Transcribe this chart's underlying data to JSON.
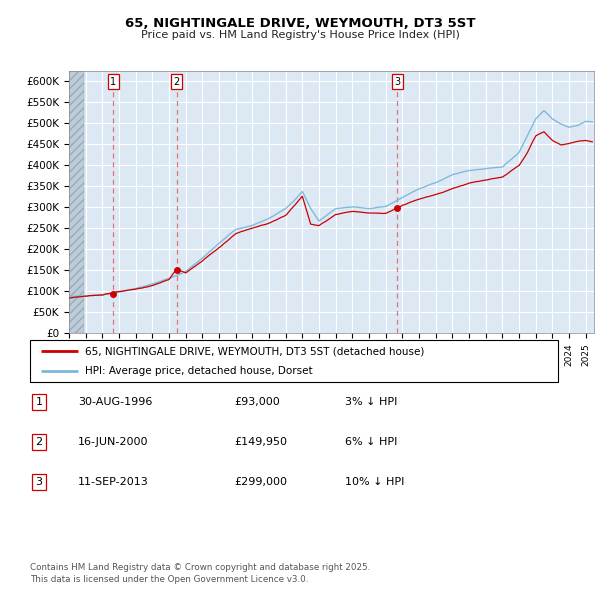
{
  "title": "65, NIGHTINGALE DRIVE, WEYMOUTH, DT3 5ST",
  "subtitle": "Price paid vs. HM Land Registry's House Price Index (HPI)",
  "ylim": [
    0,
    625000
  ],
  "yticks": [
    0,
    50000,
    100000,
    150000,
    200000,
    250000,
    300000,
    350000,
    400000,
    450000,
    500000,
    550000,
    600000
  ],
  "ytick_labels": [
    "£0",
    "£50K",
    "£100K",
    "£150K",
    "£200K",
    "£250K",
    "£300K",
    "£350K",
    "£400K",
    "£450K",
    "£500K",
    "£550K",
    "£600K"
  ],
  "xlim_start": 1994.0,
  "xlim_end": 2025.5,
  "hpi_color": "#7ab8d9",
  "price_color": "#cc0000",
  "marker_color": "#cc0000",
  "dashed_line_color": "#e06060",
  "sale_dates": [
    1996.663,
    2000.456,
    2013.703
  ],
  "sale_prices": [
    93000,
    149950,
    299000
  ],
  "sale_labels": [
    "1",
    "2",
    "3"
  ],
  "legend_price_label": "65, NIGHTINGALE DRIVE, WEYMOUTH, DT3 5ST (detached house)",
  "legend_hpi_label": "HPI: Average price, detached house, Dorset",
  "table_entries": [
    {
      "num": "1",
      "date": "30-AUG-1996",
      "price": "£93,000",
      "change": "3% ↓ HPI"
    },
    {
      "num": "2",
      "date": "16-JUN-2000",
      "price": "£149,950",
      "change": "6% ↓ HPI"
    },
    {
      "num": "3",
      "date": "11-SEP-2013",
      "price": "£299,000",
      "change": "10% ↓ HPI"
    }
  ],
  "footnote": "Contains HM Land Registry data © Crown copyright and database right 2025.\nThis data is licensed under the Open Government Licence v3.0.",
  "bg_color": "#dce9f5",
  "grid_color": "#ffffff",
  "hpi_key_points": [
    [
      1994.0,
      87000
    ],
    [
      1995.0,
      90000
    ],
    [
      1996.0,
      93000
    ],
    [
      1997.0,
      100000
    ],
    [
      1998.0,
      108000
    ],
    [
      1999.0,
      118000
    ],
    [
      2000.0,
      132000
    ],
    [
      2001.0,
      148000
    ],
    [
      2002.0,
      180000
    ],
    [
      2003.0,
      215000
    ],
    [
      2004.0,
      248000
    ],
    [
      2005.0,
      258000
    ],
    [
      2006.0,
      276000
    ],
    [
      2007.0,
      300000
    ],
    [
      2007.5,
      318000
    ],
    [
      2008.0,
      340000
    ],
    [
      2008.5,
      300000
    ],
    [
      2009.0,
      270000
    ],
    [
      2009.5,
      285000
    ],
    [
      2010.0,
      300000
    ],
    [
      2011.0,
      305000
    ],
    [
      2012.0,
      300000
    ],
    [
      2013.0,
      305000
    ],
    [
      2014.0,
      325000
    ],
    [
      2015.0,
      345000
    ],
    [
      2016.0,
      360000
    ],
    [
      2017.0,
      378000
    ],
    [
      2018.0,
      388000
    ],
    [
      2019.0,
      392000
    ],
    [
      2020.0,
      395000
    ],
    [
      2021.0,
      430000
    ],
    [
      2021.5,
      470000
    ],
    [
      2022.0,
      510000
    ],
    [
      2022.5,
      530000
    ],
    [
      2023.0,
      510000
    ],
    [
      2023.5,
      498000
    ],
    [
      2024.0,
      490000
    ],
    [
      2024.5,
      495000
    ],
    [
      2025.0,
      505000
    ],
    [
      2025.4,
      503000
    ]
  ],
  "price_key_points": [
    [
      1994.0,
      84000
    ],
    [
      1995.0,
      87000
    ],
    [
      1996.0,
      89000
    ],
    [
      1996.663,
      93000
    ],
    [
      1997.0,
      96000
    ],
    [
      1998.0,
      103000
    ],
    [
      1999.0,
      112000
    ],
    [
      2000.0,
      125000
    ],
    [
      2000.456,
      149950
    ],
    [
      2001.0,
      140000
    ],
    [
      2002.0,
      168000
    ],
    [
      2003.0,
      200000
    ],
    [
      2004.0,
      235000
    ],
    [
      2005.0,
      248000
    ],
    [
      2006.0,
      260000
    ],
    [
      2007.0,
      278000
    ],
    [
      2007.5,
      300000
    ],
    [
      2008.0,
      325000
    ],
    [
      2008.5,
      258000
    ],
    [
      2009.0,
      255000
    ],
    [
      2009.5,
      268000
    ],
    [
      2010.0,
      282000
    ],
    [
      2011.0,
      290000
    ],
    [
      2012.0,
      286000
    ],
    [
      2013.0,
      285000
    ],
    [
      2013.703,
      299000
    ],
    [
      2014.0,
      305000
    ],
    [
      2015.0,
      318000
    ],
    [
      2016.0,
      330000
    ],
    [
      2017.0,
      345000
    ],
    [
      2018.0,
      358000
    ],
    [
      2019.0,
      365000
    ],
    [
      2020.0,
      372000
    ],
    [
      2021.0,
      400000
    ],
    [
      2021.5,
      430000
    ],
    [
      2022.0,
      470000
    ],
    [
      2022.5,
      480000
    ],
    [
      2023.0,
      460000
    ],
    [
      2023.5,
      448000
    ],
    [
      2024.0,
      450000
    ],
    [
      2024.5,
      455000
    ],
    [
      2025.0,
      458000
    ],
    [
      2025.4,
      456000
    ]
  ]
}
